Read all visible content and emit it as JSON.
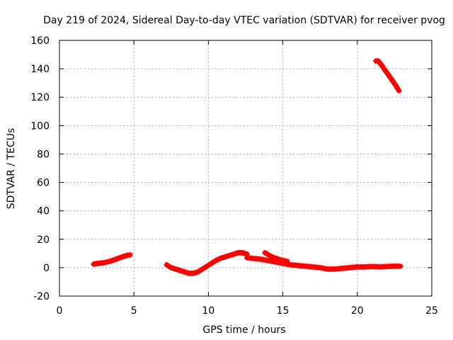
{
  "chart_data": {
    "type": "scatter",
    "title": "Day 219 of 2024, Sidereal Day-to-day VTEC variation (SDTVAR) for receiver pvog",
    "xlabel": "GPS time / hours",
    "ylabel": "SDTVAR / TECUs",
    "xlim": [
      0,
      25
    ],
    "ylim": [
      -20,
      160
    ],
    "xticks": [
      0,
      5,
      10,
      15,
      20,
      25
    ],
    "yticks": [
      -20,
      0,
      20,
      40,
      60,
      80,
      100,
      120,
      140,
      160
    ],
    "grid": true,
    "marker": "+",
    "series": [
      {
        "name": "SDTVAR",
        "color": "#ff0000",
        "segments": [
          {
            "x": [
              2.3,
              2.6,
              3.0,
              3.4,
              3.8,
              4.2,
              4.5,
              4.75
            ],
            "y": [
              2.5,
              3,
              3.5,
              4.5,
              6,
              7.5,
              8.5,
              9
            ]
          },
          {
            "x": [
              7.2,
              7.5,
              7.8,
              8.1,
              8.4,
              8.7,
              9.0,
              9.3,
              9.6,
              9.9,
              10.2,
              10.5,
              10.8,
              11.1,
              11.4,
              11.7,
              12.0,
              12.3,
              12.6
            ],
            "y": [
              2,
              0,
              -1,
              -2,
              -3,
              -4,
              -4,
              -3,
              -1,
              1,
              3,
              5,
              6.5,
              7.5,
              8.5,
              9.5,
              10.5,
              10.5,
              9.5
            ]
          },
          {
            "x": [
              12.6,
              13.0,
              13.5,
              14.0,
              14.5,
              15.0,
              15.5,
              16.0,
              16.5,
              17.0,
              17.5,
              18.0,
              18.5,
              19.0,
              19.5,
              20.0,
              20.5,
              21.0,
              21.5,
              22.0,
              22.5,
              22.9
            ],
            "y": [
              7,
              6.5,
              6,
              5,
              4,
              3,
              2,
              1.5,
              1,
              0.5,
              0,
              -1,
              -1,
              -0.5,
              0,
              0.5,
              0.5,
              0.8,
              0.5,
              0.8,
              1,
              1
            ]
          },
          {
            "x": [
              13.8,
              14.1,
              14.4,
              14.7,
              15.0,
              15.3
            ],
            "y": [
              10.5,
              8.5,
              7,
              6,
              5,
              4.5
            ]
          },
          {
            "x": [
              21.25,
              21.4,
              21.6,
              21.8,
              22.0,
              22.2,
              22.4,
              22.6,
              22.8
            ],
            "y": [
              145.5,
              145.5,
              143,
              140,
              137,
              134,
              131,
              128,
              124.5
            ]
          }
        ]
      }
    ]
  }
}
